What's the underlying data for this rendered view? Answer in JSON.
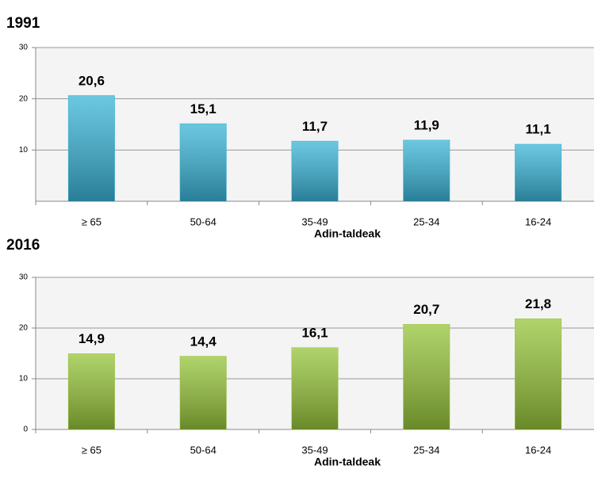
{
  "chart_data": [
    {
      "type": "bar",
      "title": "1991",
      "x_label": "Adin-taldeak",
      "categories": [
        "≥ 65",
        "50-64",
        "35-49",
        "25-34",
        "16-24"
      ],
      "values": [
        20.6,
        15.1,
        11.7,
        11.9,
        11.1
      ],
      "value_labels": [
        "20,6",
        "15,1",
        "11,7",
        "11,9",
        "11,1"
      ],
      "color": "#3ab4d6",
      "ylim": [
        0,
        30
      ],
      "yticks": [
        10,
        20,
        30
      ],
      "grid": true
    },
    {
      "type": "bar",
      "title": "2016",
      "x_label": "Adin-taldeak",
      "categories": [
        "≥ 65",
        "50-64",
        "35-49",
        "25-34",
        "16-24"
      ],
      "values": [
        14.9,
        14.4,
        16.1,
        20.7,
        21.8
      ],
      "value_labels": [
        "14,9",
        "14,4",
        "16,1",
        "20,7",
        "21,8"
      ],
      "color": "#96c43a",
      "ylim": [
        0,
        30
      ],
      "yticks": [
        0,
        10,
        20,
        30
      ],
      "grid": true
    }
  ]
}
